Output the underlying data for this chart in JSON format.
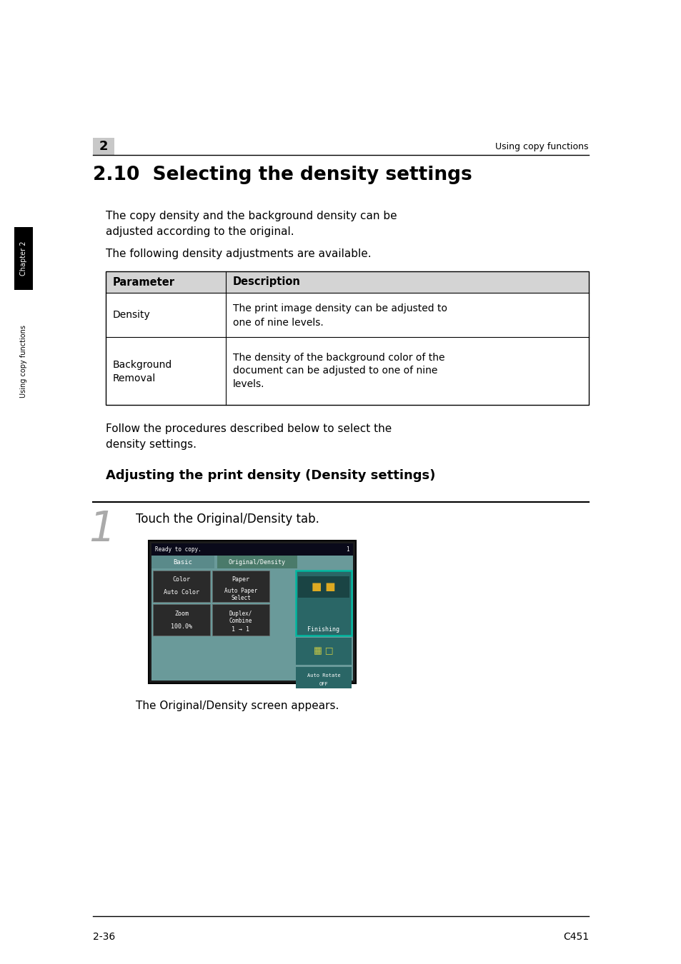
{
  "page_bg": "#ffffff",
  "header_number": "2",
  "header_text": "Using copy functions",
  "section_title": "2.10  Selecting the density settings",
  "para1_line1": "The copy density and the background density can be",
  "para1_line2": "adjusted according to the original.",
  "para2": "The following density adjustments are available.",
  "table_header_col1": "Parameter",
  "table_header_col2": "Description",
  "table_row1_col1": "Density",
  "table_row1_col2_line1": "The print image density can be adjusted to",
  "table_row1_col2_line2": "one of nine levels.",
  "table_row2_col1_line1": "Background",
  "table_row2_col1_line2": "Removal",
  "table_row2_col2_line1": "The density of the background color of the",
  "table_row2_col2_line2": "document can be adjusted to one of nine",
  "table_row2_col2_line3": "levels.",
  "para3_line1": "Follow the procedures described below to select the",
  "para3_line2": "density settings.",
  "subheading": "Adjusting the print density (Density settings)",
  "step_number": "1",
  "step_text": "Touch the Original/Density tab.",
  "screen_status": "Ready to copy.",
  "screen_page": "1",
  "screen_basic": "Basic",
  "screen_od": "Original/Density",
  "screen_color_label": "Color",
  "screen_color_val": "Auto Color",
  "screen_paper_label": "Paper",
  "screen_paper_val1": "Auto Paper",
  "screen_paper_val2": "Select",
  "screen_finishing": "Finishing",
  "screen_zoom_label": "Zoom",
  "screen_zoom_val": "100.0%",
  "screen_duplex_label1": "Duplex/",
  "screen_duplex_label2": "Combine",
  "screen_duplex_val": "1 → 1",
  "screen_autorotate1": "Auto Rotate",
  "screen_autorotate2": "OFF",
  "step_note": "The Original/Density screen appears.",
  "footer_left": "2-36",
  "footer_right": "C451",
  "sidebar_chapter": "Chapter 2",
  "sidebar_func": "Using copy functions",
  "chapter_box_color": "#000000",
  "header_box_color": "#c8c8c8",
  "table_header_bg": "#d4d4d4",
  "screen_outer_bg": "#1c1c1c",
  "screen_teal": "#6a9a9a",
  "screen_status_bg": "#0a0a1a",
  "screen_tab_basic": "#5a8a8a",
  "screen_tab_od": "#4a7a6a",
  "screen_btn_dark": "#2a2a2a",
  "screen_btn_border": "#666666",
  "screen_fin_bg": "#2a6666",
  "screen_fin_border": "#00b8a0"
}
